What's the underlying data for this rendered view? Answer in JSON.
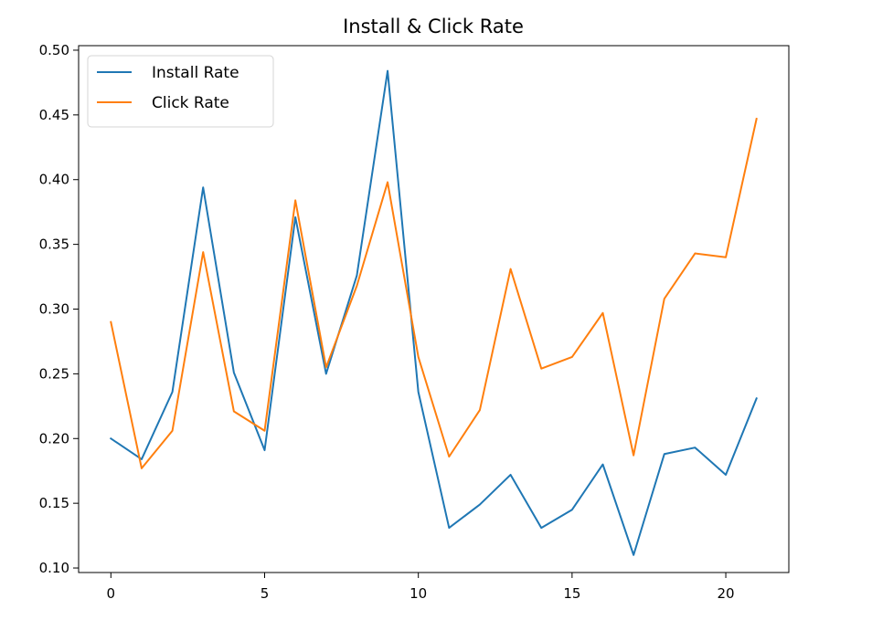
{
  "chart_data": {
    "type": "line",
    "title": "Install & Click Rate",
    "xlabel": "",
    "ylabel": "",
    "x": [
      0,
      1,
      2,
      3,
      4,
      5,
      6,
      7,
      8,
      9,
      10,
      11,
      12,
      13,
      14,
      15,
      16,
      17,
      18,
      19,
      20,
      21
    ],
    "xlim": [
      -1.05,
      22.05
    ],
    "ylim": [
      0.0965,
      0.5035
    ],
    "xticks": [
      0,
      5,
      10,
      15,
      20
    ],
    "xtick_labels": [
      "0",
      "5",
      "10",
      "15",
      "20"
    ],
    "yticks": [
      0.1,
      0.15,
      0.2,
      0.25,
      0.3,
      0.35,
      0.4,
      0.45,
      0.5
    ],
    "ytick_labels": [
      "0.10",
      "0.15",
      "0.20",
      "0.25",
      "0.30",
      "0.35",
      "0.40",
      "0.45",
      "0.50"
    ],
    "grid": false,
    "legend_position": "top-left",
    "series": [
      {
        "name": "Install Rate",
        "color": "#1f77b4",
        "values": [
          0.2,
          0.184,
          0.236,
          0.394,
          0.251,
          0.191,
          0.371,
          0.25,
          0.326,
          0.484,
          0.236,
          0.131,
          0.149,
          0.172,
          0.131,
          0.145,
          0.18,
          0.11,
          0.188,
          0.193,
          0.172,
          0.231
        ]
      },
      {
        "name": "Click Rate",
        "color": "#ff7f0e",
        "values": [
          0.29,
          0.177,
          0.206,
          0.344,
          0.221,
          0.206,
          0.384,
          0.255,
          0.318,
          0.398,
          0.263,
          0.186,
          0.222,
          0.331,
          0.254,
          0.263,
          0.297,
          0.187,
          0.308,
          0.343,
          0.34,
          0.447
        ]
      }
    ]
  }
}
